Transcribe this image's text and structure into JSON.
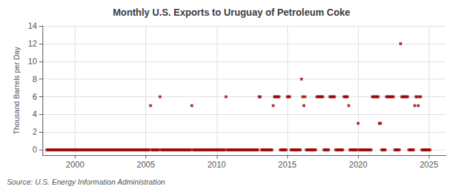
{
  "chart_data": {
    "type": "scatter",
    "title": "Monthly U.S. Exports to Uruguay of Petroleum Coke",
    "ylabel": "Thousand Barrels per Day",
    "annotations": [
      "Source: U.S. Energy Information Administration"
    ],
    "color": "#990000",
    "marker": "square",
    "grid": true,
    "xlim": [
      1997.7,
      2026.2
    ],
    "xticks": [
      2000,
      2005,
      2010,
      2015,
      2020,
      2025
    ],
    "ylim": [
      -0.6,
      14
    ],
    "yticks": [
      0,
      2,
      4,
      6,
      8,
      10,
      12,
      14
    ],
    "x": [
      1998.0,
      1998.083,
      1998.167,
      1998.25,
      1998.333,
      1998.417,
      1998.5,
      1998.583,
      1998.667,
      1998.75,
      1998.833,
      1998.917,
      1999.0,
      1999.083,
      1999.167,
      1999.25,
      1999.333,
      1999.417,
      1999.5,
      1999.583,
      1999.667,
      1999.75,
      1999.833,
      1999.917,
      2000.0,
      2000.083,
      2000.167,
      2000.25,
      2000.333,
      2000.417,
      2000.5,
      2000.583,
      2000.667,
      2000.75,
      2000.833,
      2000.917,
      2001.0,
      2001.083,
      2001.167,
      2001.25,
      2001.333,
      2001.417,
      2001.5,
      2001.583,
      2001.667,
      2001.75,
      2001.833,
      2001.917,
      2002.0,
      2002.083,
      2002.167,
      2002.25,
      2002.333,
      2002.417,
      2002.5,
      2002.583,
      2002.667,
      2002.75,
      2002.833,
      2002.917,
      2003.0,
      2003.083,
      2003.167,
      2003.25,
      2003.333,
      2003.417,
      2003.5,
      2003.583,
      2003.667,
      2003.75,
      2003.833,
      2003.917,
      2004.0,
      2004.083,
      2004.167,
      2004.25,
      2004.333,
      2004.417,
      2004.5,
      2004.583,
      2004.667,
      2004.75,
      2004.833,
      2004.917,
      2005.0,
      2005.083,
      2005.167,
      2005.25,
      2005.333,
      2005.417,
      2005.5,
      2005.583,
      2005.667,
      2005.75,
      2005.833,
      2005.917,
      2006.0,
      2006.083,
      2006.167,
      2006.25,
      2006.333,
      2006.417,
      2006.5,
      2006.583,
      2006.667,
      2006.75,
      2006.833,
      2006.917,
      2007.0,
      2007.083,
      2007.167,
      2007.25,
      2007.333,
      2007.417,
      2007.5,
      2007.583,
      2007.667,
      2007.75,
      2007.833,
      2007.917,
      2008.0,
      2008.083,
      2008.167,
      2008.25,
      2008.333,
      2008.417,
      2008.5,
      2008.583,
      2008.667,
      2008.75,
      2008.833,
      2008.917,
      2009.0,
      2009.083,
      2009.167,
      2009.25,
      2009.333,
      2009.417,
      2009.5,
      2009.583,
      2009.667,
      2009.75,
      2009.833,
      2009.917,
      2010.0,
      2010.083,
      2010.167,
      2010.25,
      2010.333,
      2010.417,
      2010.5,
      2010.583,
      2010.667,
      2010.75,
      2010.833,
      2010.917,
      2011.0,
      2011.083,
      2011.167,
      2011.25,
      2011.333,
      2011.417,
      2011.5,
      2011.583,
      2011.667,
      2011.75,
      2011.833,
      2011.917,
      2012.0,
      2012.083,
      2012.167,
      2012.25,
      2012.333,
      2012.417,
      2012.5,
      2012.583,
      2012.667,
      2012.75,
      2012.833,
      2012.917,
      2013.0,
      2013.083,
      2013.167,
      2013.25,
      2013.333,
      2013.417,
      2013.5,
      2013.583,
      2013.667,
      2013.75,
      2013.833,
      2013.917,
      2014.0,
      2014.083,
      2014.167,
      2014.25,
      2014.333,
      2014.417,
      2014.5,
      2014.583,
      2014.667,
      2014.75,
      2014.833,
      2014.917,
      2015.0,
      2015.083,
      2015.167,
      2015.25,
      2015.333,
      2015.417,
      2015.5,
      2015.583,
      2015.667,
      2015.75,
      2015.833,
      2015.917,
      2016.0,
      2016.083,
      2016.167,
      2016.25,
      2016.333,
      2016.417,
      2016.5,
      2016.583,
      2016.667,
      2016.75,
      2016.833,
      2016.917,
      2017.0,
      2017.083,
      2017.167,
      2017.25,
      2017.333,
      2017.417,
      2017.5,
      2017.583,
      2017.667,
      2017.75,
      2017.833,
      2017.917,
      2018.0,
      2018.083,
      2018.167,
      2018.25,
      2018.333,
      2018.417,
      2018.5,
      2018.583,
      2018.667,
      2018.75,
      2018.833,
      2018.917,
      2019.0,
      2019.083,
      2019.167,
      2019.25,
      2019.333,
      2019.417,
      2019.5,
      2019.583,
      2019.667,
      2019.75,
      2019.833,
      2019.917,
      2020.0,
      2020.083,
      2020.167,
      2020.25,
      2020.333,
      2020.417,
      2020.5,
      2020.583,
      2020.667,
      2020.75,
      2020.833,
      2020.917,
      2021.0,
      2021.083,
      2021.167,
      2021.25,
      2021.333,
      2021.417,
      2021.5,
      2021.583,
      2021.667,
      2021.75,
      2021.833,
      2021.917,
      2022.0,
      2022.083,
      2022.167,
      2022.25,
      2022.333,
      2022.417,
      2022.5,
      2022.583,
      2022.667,
      2022.75,
      2022.833,
      2022.917,
      2023.0,
      2023.083,
      2023.167,
      2023.25,
      2023.333,
      2023.417,
      2023.5,
      2023.583,
      2023.667,
      2023.75,
      2023.833,
      2023.917,
      2024.0,
      2024.083,
      2024.167,
      2024.25,
      2024.333,
      2024.417,
      2024.5,
      2024.583,
      2024.667,
      2024.75,
      2024.833,
      2024.917,
      2025.0,
      2025.083
    ],
    "values": [
      0,
      0,
      0,
      0,
      0,
      0,
      0,
      0,
      0,
      0,
      0,
      0,
      0,
      0,
      0,
      0,
      0,
      0,
      0,
      0,
      0,
      0,
      0,
      0,
      0,
      0,
      0,
      0,
      0,
      0,
      0,
      0,
      0,
      0,
      0,
      0,
      0,
      0,
      0,
      0,
      0,
      0,
      0,
      0,
      0,
      0,
      0,
      0,
      0,
      0,
      0,
      0,
      0,
      0,
      0,
      0,
      0,
      0,
      0,
      0,
      0,
      0,
      0,
      0,
      0,
      0,
      0,
      0,
      0,
      0,
      0,
      0,
      0,
      0,
      0,
      0,
      0,
      0,
      0,
      0,
      0,
      0,
      0,
      0,
      0,
      0,
      0,
      0,
      5,
      0,
      0,
      0,
      0,
      0,
      0,
      0,
      6,
      0,
      0,
      0,
      0,
      0,
      0,
      0,
      0,
      0,
      0,
      0,
      0,
      0,
      0,
      0,
      0,
      0,
      0,
      0,
      0,
      0,
      0,
      0,
      0,
      0,
      0,
      5,
      0,
      0,
      0,
      0,
      0,
      0,
      0,
      0,
      0,
      0,
      0,
      0,
      0,
      0,
      0,
      0,
      0,
      0,
      0,
      0,
      0,
      0,
      0,
      0,
      0,
      0,
      0,
      0,
      6,
      0,
      0,
      0,
      0,
      0,
      0,
      0,
      0,
      0,
      0,
      0,
      0,
      0,
      0,
      0,
      0,
      0,
      0,
      0,
      0,
      0,
      0,
      0,
      0,
      0,
      0,
      0,
      6,
      6,
      0,
      0,
      0,
      0,
      0,
      0,
      0,
      0,
      0,
      0,
      5,
      6,
      6,
      6,
      6,
      6,
      0,
      0,
      0,
      0,
      0,
      0,
      6,
      6,
      6,
      0,
      0,
      0,
      0,
      0,
      0,
      0,
      0,
      0,
      8,
      6,
      5,
      6,
      0,
      0,
      0,
      0,
      0,
      0,
      0,
      0,
      0,
      6,
      6,
      6,
      6,
      6,
      6,
      0,
      0,
      0,
      0,
      0,
      6,
      6,
      6,
      6,
      6,
      0,
      0,
      0,
      0,
      0,
      0,
      0,
      6,
      6,
      6,
      6,
      5,
      0,
      0,
      0,
      0,
      0,
      0,
      0,
      3,
      0,
      0,
      0,
      0,
      0,
      0,
      0,
      0,
      0,
      0,
      0,
      6,
      6,
      6,
      6,
      6,
      6,
      3,
      3,
      0,
      0,
      0,
      0,
      6,
      6,
      6,
      6,
      6,
      6,
      6,
      0,
      0,
      0,
      0,
      0,
      12,
      6,
      6,
      6,
      6,
      6,
      6,
      0,
      0,
      0,
      0,
      0,
      5,
      6,
      6,
      5,
      6,
      6,
      0,
      0,
      0,
      0,
      0,
      0,
      0,
      0
    ]
  }
}
